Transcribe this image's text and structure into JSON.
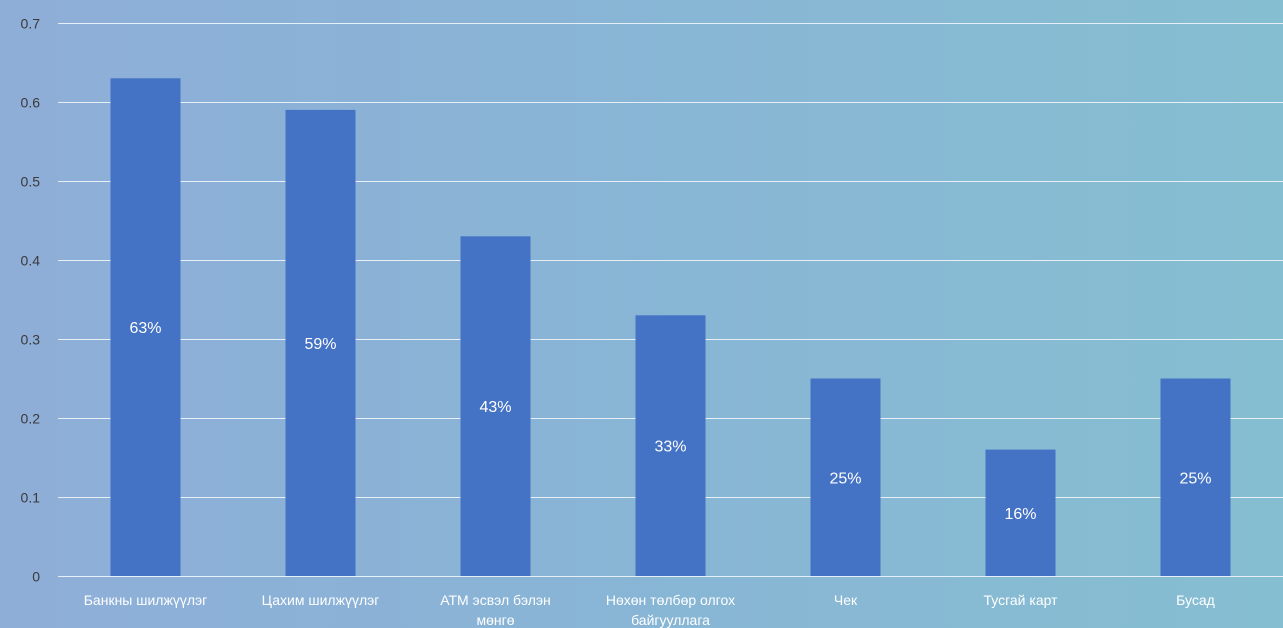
{
  "chart_data": {
    "type": "bar",
    "categories": [
      "Банкны шилжүүлэг",
      "Цахим шилжүүлэг",
      "АТМ эсвэл бэлэн мөнгө",
      "Нөхөн төлбөр олгох байгууллага",
      "Чек",
      "Тусгай карт",
      "Бусад"
    ],
    "category_label_lines": [
      [
        "Банкны шилжүүлэг"
      ],
      [
        "Цахим шилжүүлэг"
      ],
      [
        "АТМ эсвэл бэлэн",
        "мөнгө"
      ],
      [
        "Нөхөн төлбөр олгох",
        "байгууллага"
      ],
      [
        "Чек"
      ],
      [
        "Тусгай карт"
      ],
      [
        "Бусад"
      ]
    ],
    "values": [
      0.63,
      0.59,
      0.43,
      0.33,
      0.25,
      0.16,
      0.25
    ],
    "data_labels": [
      "63%",
      "59%",
      "43%",
      "33%",
      "25%",
      "16%",
      "25%"
    ],
    "y_ticks": [
      0,
      0.1,
      0.2,
      0.3,
      0.4,
      0.5,
      0.6,
      0.7
    ],
    "y_tick_labels": [
      "0",
      "0.1",
      "0.2",
      "0.3",
      "0.4",
      "0.5",
      "0.6",
      "0.7"
    ],
    "ylim": [
      0,
      0.7
    ],
    "grid": true,
    "legend": "none",
    "colors": {
      "bar": "#4472c4",
      "gridline": "#e6eef6",
      "tick_text": "#3a3a3a",
      "category_text": "#ffffff",
      "data_label_text": "#ffffff"
    }
  }
}
